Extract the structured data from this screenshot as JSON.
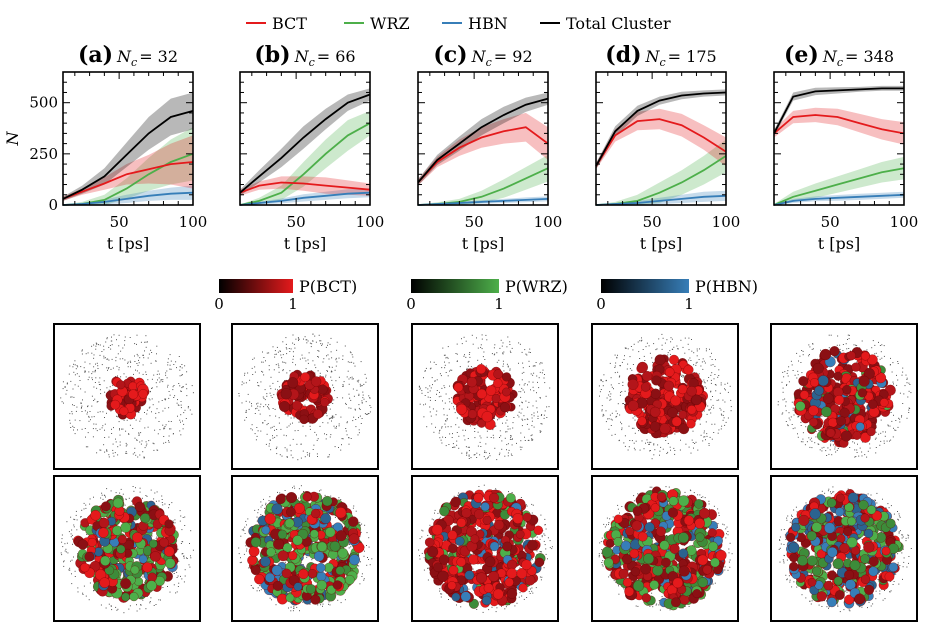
{
  "legend": {
    "items": [
      {
        "name": "BCT",
        "color": "#e41a1c"
      },
      {
        "name": "WRZ",
        "color": "#4daf4a"
      },
      {
        "name": "HBN",
        "color": "#377eb8"
      },
      {
        "name": "Total Cluster",
        "color": "#000000"
      }
    ]
  },
  "colorbars": [
    {
      "label": "P(BCT)",
      "color": "#e41a1c",
      "min": "0",
      "max": "1"
    },
    {
      "label": "P(WRZ)",
      "color": "#4daf4a",
      "min": "0",
      "max": "1"
    },
    {
      "label": "P(HBN)",
      "color": "#377eb8",
      "min": "0",
      "max": "1"
    }
  ],
  "chart_data": [
    {
      "type": "line",
      "panel": "(a)",
      "nc_label": "N",
      "nc_sub": "c",
      "nc_value": "= 32",
      "xlabel": "t [ps]",
      "ylabel": "N",
      "xlim": [
        12,
        100
      ],
      "ylim": [
        0,
        650
      ],
      "xticks": [
        50,
        100
      ],
      "yticks": [
        0,
        250,
        500
      ],
      "series": [
        {
          "name": "Total Cluster",
          "color": "#000000",
          "x": [
            12,
            25,
            40,
            55,
            70,
            85,
            100
          ],
          "y": [
            30,
            75,
            140,
            245,
            350,
            430,
            460
          ],
          "band": [
            10,
            20,
            40,
            60,
            80,
            90,
            90
          ]
        },
        {
          "name": "BCT",
          "color": "#e41a1c",
          "x": [
            12,
            25,
            40,
            55,
            70,
            85,
            100
          ],
          "y": [
            30,
            65,
            105,
            150,
            175,
            200,
            210
          ],
          "band": [
            10,
            15,
            30,
            50,
            70,
            100,
            130
          ]
        },
        {
          "name": "WRZ",
          "color": "#4daf4a",
          "x": [
            12,
            25,
            40,
            55,
            70,
            85,
            100
          ],
          "y": [
            0,
            5,
            25,
            80,
            150,
            210,
            250
          ],
          "band": [
            2,
            10,
            25,
            50,
            80,
            110,
            130
          ]
        },
        {
          "name": "HBN",
          "color": "#377eb8",
          "x": [
            12,
            25,
            40,
            55,
            70,
            85,
            100
          ],
          "y": [
            0,
            5,
            15,
            30,
            45,
            55,
            60
          ],
          "band": [
            2,
            6,
            12,
            20,
            25,
            30,
            35
          ]
        }
      ]
    },
    {
      "type": "line",
      "panel": "(b)",
      "nc_label": "N",
      "nc_sub": "c",
      "nc_value": "= 66",
      "xlabel": "t [ps]",
      "ylabel": "",
      "xlim": [
        12,
        100
      ],
      "ylim": [
        0,
        650
      ],
      "xticks": [
        50,
        100
      ],
      "yticks": [
        0,
        250,
        500
      ],
      "series": [
        {
          "name": "Total Cluster",
          "color": "#000000",
          "x": [
            12,
            25,
            40,
            55,
            70,
            85,
            100
          ],
          "y": [
            60,
            140,
            230,
            330,
            420,
            500,
            540
          ],
          "band": [
            15,
            30,
            45,
            55,
            50,
            40,
            30
          ]
        },
        {
          "name": "BCT",
          "color": "#e41a1c",
          "x": [
            12,
            25,
            40,
            55,
            70,
            85,
            100
          ],
          "y": [
            60,
            95,
            110,
            105,
            95,
            85,
            75
          ],
          "band": [
            15,
            20,
            30,
            35,
            40,
            35,
            30
          ]
        },
        {
          "name": "WRZ",
          "color": "#4daf4a",
          "x": [
            12,
            25,
            40,
            55,
            70,
            85,
            100
          ],
          "y": [
            0,
            20,
            60,
            150,
            250,
            340,
            400
          ],
          "band": [
            2,
            15,
            35,
            60,
            70,
            75,
            60
          ]
        },
        {
          "name": "HBN",
          "color": "#377eb8",
          "x": [
            12,
            25,
            40,
            55,
            70,
            85,
            100
          ],
          "y": [
            0,
            10,
            20,
            35,
            45,
            55,
            60
          ],
          "band": [
            2,
            6,
            12,
            18,
            20,
            22,
            22
          ]
        }
      ]
    },
    {
      "type": "line",
      "panel": "(c)",
      "nc_label": "N",
      "nc_sub": "c",
      "nc_value": "= 92",
      "xlabel": "t [ps]",
      "ylabel": "",
      "xlim": [
        12,
        100
      ],
      "ylim": [
        0,
        650
      ],
      "xticks": [
        50,
        100
      ],
      "yticks": [
        0,
        250,
        500
      ],
      "series": [
        {
          "name": "Total Cluster",
          "color": "#000000",
          "x": [
            12,
            25,
            40,
            55,
            70,
            85,
            100
          ],
          "y": [
            110,
            220,
            300,
            380,
            440,
            490,
            520
          ],
          "band": [
            15,
            25,
            35,
            40,
            40,
            35,
            30
          ]
        },
        {
          "name": "BCT",
          "color": "#e41a1c",
          "x": [
            12,
            25,
            40,
            55,
            70,
            85,
            100
          ],
          "y": [
            110,
            210,
            280,
            330,
            360,
            380,
            300
          ],
          "band": [
            15,
            25,
            40,
            50,
            60,
            70,
            80
          ]
        },
        {
          "name": "WRZ",
          "color": "#4daf4a",
          "x": [
            12,
            25,
            40,
            55,
            70,
            85,
            100
          ],
          "y": [
            0,
            5,
            15,
            40,
            80,
            130,
            180
          ],
          "band": [
            2,
            8,
            15,
            30,
            45,
            55,
            65
          ]
        },
        {
          "name": "HBN",
          "color": "#377eb8",
          "x": [
            12,
            25,
            40,
            55,
            70,
            85,
            100
          ],
          "y": [
            0,
            5,
            10,
            15,
            20,
            25,
            30
          ],
          "band": [
            2,
            4,
            6,
            8,
            10,
            12,
            12
          ]
        }
      ]
    },
    {
      "type": "line",
      "panel": "(d)",
      "nc_label": "N",
      "nc_sub": "c",
      "nc_value": "= 175",
      "xlabel": "t [ps]",
      "ylabel": "",
      "xlim": [
        12,
        100
      ],
      "ylim": [
        0,
        650
      ],
      "xticks": [
        50,
        100
      ],
      "yticks": [
        0,
        250,
        500
      ],
      "series": [
        {
          "name": "Total Cluster",
          "color": "#000000",
          "x": [
            12,
            25,
            40,
            55,
            70,
            85,
            100
          ],
          "y": [
            190,
            360,
            460,
            510,
            535,
            545,
            550
          ],
          "band": [
            15,
            25,
            25,
            20,
            18,
            15,
            15
          ]
        },
        {
          "name": "BCT",
          "color": "#e41a1c",
          "x": [
            12,
            25,
            40,
            55,
            70,
            85,
            100
          ],
          "y": [
            190,
            340,
            410,
            420,
            390,
            330,
            260
          ],
          "band": [
            15,
            30,
            45,
            50,
            55,
            60,
            70
          ]
        },
        {
          "name": "WRZ",
          "color": "#4daf4a",
          "x": [
            12,
            25,
            40,
            55,
            70,
            85,
            100
          ],
          "y": [
            0,
            5,
            20,
            60,
            110,
            170,
            240
          ],
          "band": [
            2,
            10,
            30,
            50,
            60,
            70,
            80
          ]
        },
        {
          "name": "HBN",
          "color": "#377eb8",
          "x": [
            12,
            25,
            40,
            55,
            70,
            85,
            100
          ],
          "y": [
            0,
            5,
            10,
            20,
            30,
            40,
            45
          ],
          "band": [
            2,
            5,
            10,
            15,
            20,
            25,
            25
          ]
        }
      ]
    },
    {
      "type": "line",
      "panel": "(e)",
      "nc_label": "N",
      "nc_sub": "c",
      "nc_value": "= 348",
      "xlabel": "t [ps]",
      "ylabel": "",
      "xlim": [
        12,
        100
      ],
      "ylim": [
        0,
        650
      ],
      "xticks": [
        50,
        100
      ],
      "yticks": [
        0,
        250,
        500
      ],
      "series": [
        {
          "name": "Total Cluster",
          "color": "#000000",
          "x": [
            12,
            25,
            40,
            55,
            70,
            85,
            100
          ],
          "y": [
            350,
            530,
            555,
            560,
            565,
            570,
            570
          ],
          "band": [
            15,
            20,
            18,
            15,
            12,
            12,
            12
          ]
        },
        {
          "name": "BCT",
          "color": "#e41a1c",
          "x": [
            12,
            25,
            40,
            55,
            70,
            85,
            100
          ],
          "y": [
            350,
            430,
            440,
            430,
            400,
            370,
            350
          ],
          "band": [
            20,
            30,
            35,
            40,
            45,
            50,
            55
          ]
        },
        {
          "name": "WRZ",
          "color": "#4daf4a",
          "x": [
            12,
            25,
            40,
            55,
            70,
            85,
            100
          ],
          "y": [
            0,
            40,
            70,
            100,
            130,
            160,
            180
          ],
          "band": [
            5,
            25,
            35,
            40,
            45,
            50,
            55
          ]
        },
        {
          "name": "HBN",
          "color": "#377eb8",
          "x": [
            12,
            25,
            40,
            55,
            70,
            85,
            100
          ],
          "y": [
            0,
            20,
            30,
            35,
            40,
            45,
            50
          ],
          "band": [
            3,
            10,
            12,
            14,
            15,
            15,
            15
          ]
        }
      ]
    }
  ],
  "snapshots": {
    "top": [
      {
        "panel": "(a)",
        "probe": "top",
        "r": 0.13,
        "mix": [
          1,
          0,
          0
        ]
      },
      {
        "panel": "(b)",
        "probe": "top",
        "r": 0.16,
        "mix": [
          0.98,
          0.02,
          0
        ]
      },
      {
        "panel": "(c)",
        "probe": "top",
        "r": 0.2,
        "mix": [
          1,
          0,
          0
        ]
      },
      {
        "panel": "(d)",
        "probe": "top",
        "r": 0.26,
        "mix": [
          1,
          0,
          0
        ]
      },
      {
        "panel": "(e)",
        "probe": "top",
        "r": 0.32,
        "mix": [
          0.85,
          0.07,
          0.08
        ]
      }
    ],
    "bottom": [
      {
        "panel": "(a)",
        "probe": "bottom",
        "r": 0.34,
        "mix": [
          0.45,
          0.45,
          0.1
        ]
      },
      {
        "panel": "(b)",
        "probe": "bottom",
        "r": 0.38,
        "mix": [
          0.35,
          0.5,
          0.15
        ]
      },
      {
        "panel": "(c)",
        "probe": "bottom",
        "r": 0.39,
        "mix": [
          0.75,
          0.15,
          0.1
        ]
      },
      {
        "panel": "(d)",
        "probe": "bottom",
        "r": 0.4,
        "mix": [
          0.5,
          0.35,
          0.15
        ]
      },
      {
        "panel": "(e)",
        "probe": "bottom",
        "r": 0.38,
        "mix": [
          0.45,
          0.3,
          0.25
        ]
      }
    ]
  }
}
